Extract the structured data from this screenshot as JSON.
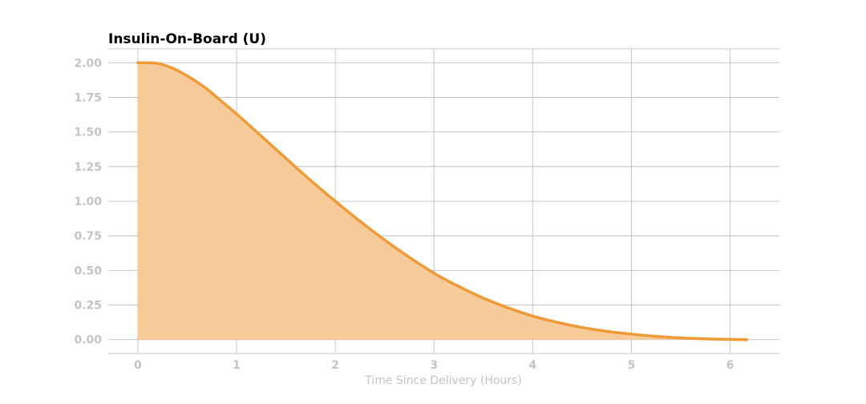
{
  "chart_data": {
    "type": "area",
    "title": "Insulin-On-Board (U)",
    "xlabel": "Time Since Delivery (Hours)",
    "ylabel": "",
    "xlim": [
      -0.3,
      6.5
    ],
    "ylim": [
      -0.1,
      2.1
    ],
    "x_ticks": [
      0,
      1,
      2,
      3,
      4,
      5,
      6
    ],
    "y_ticks": [
      0,
      0.25,
      0.5,
      0.75,
      1.0,
      1.25,
      1.5,
      1.75,
      2.0
    ],
    "x_tick_labels": [
      "0",
      "1",
      "2",
      "3",
      "4",
      "5",
      "6"
    ],
    "y_tick_labels": [
      "0.00",
      "0.25",
      "0.50",
      "0.75",
      "1.00",
      "1.25",
      "1.50",
      "1.75",
      "2.00"
    ],
    "grid": true,
    "legend": "none",
    "series": [
      {
        "x": [
          0,
          0.1,
          0.2,
          0.3,
          0.4,
          0.5,
          0.6,
          0.7,
          0.8,
          0.9,
          1.0,
          1.25,
          1.5,
          1.75,
          2.0,
          2.25,
          2.5,
          2.75,
          3.0,
          3.25,
          3.5,
          3.75,
          4.0,
          4.25,
          4.5,
          4.75,
          5.0,
          5.25,
          5.5,
          5.75,
          6.0,
          6.17
        ],
        "y": [
          2.0,
          2.0,
          1.995,
          1.975,
          1.945,
          1.905,
          1.86,
          1.81,
          1.75,
          1.69,
          1.63,
          1.47,
          1.31,
          1.15,
          1.0,
          0.855,
          0.72,
          0.595,
          0.48,
          0.385,
          0.3,
          0.23,
          0.17,
          0.125,
          0.088,
          0.06,
          0.04,
          0.024,
          0.013,
          0.006,
          0.002,
          0.0
        ]
      }
    ],
    "colors": {
      "line": "#f09a36",
      "fill": "#f7cb99",
      "grid": "#b8b8b8",
      "tick_text": "#c4c4c4",
      "axis_label_text": "#c4c4c4"
    }
  }
}
